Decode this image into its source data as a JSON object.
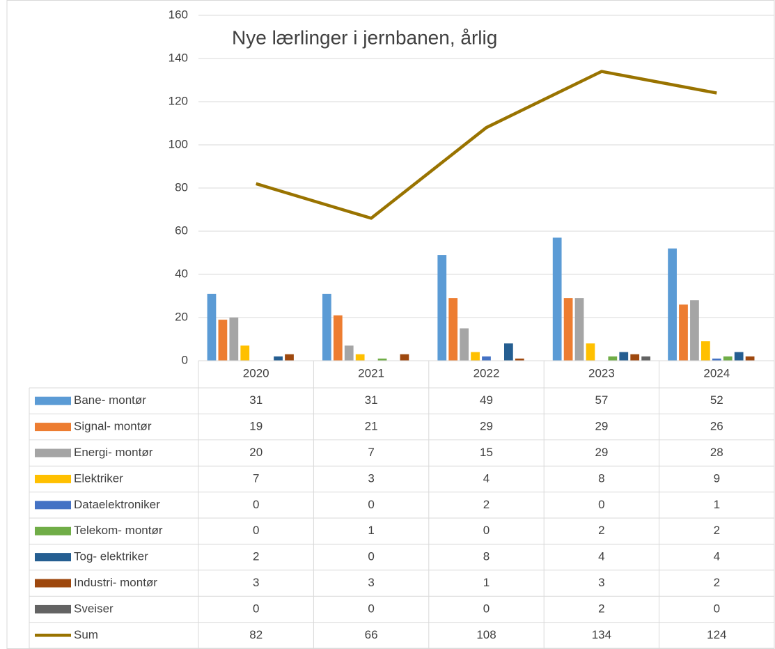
{
  "chart_data": {
    "type": "bar",
    "title": "Nye lærlinger i jernbanen, årlig",
    "categories": [
      "2020",
      "2021",
      "2022",
      "2023",
      "2024"
    ],
    "series": [
      {
        "name": "Bane- montør",
        "color": "#5B9BD5",
        "values": [
          31,
          31,
          49,
          57,
          52
        ]
      },
      {
        "name": "Signal- montør",
        "color": "#ED7D31",
        "values": [
          19,
          21,
          29,
          29,
          26
        ]
      },
      {
        "name": "Energi- montør",
        "color": "#A5A5A5",
        "values": [
          20,
          7,
          15,
          29,
          28
        ]
      },
      {
        "name": "Elektriker",
        "color": "#FFC000",
        "values": [
          7,
          3,
          4,
          8,
          9
        ]
      },
      {
        "name": "Dataelektroniker",
        "color": "#4472C4",
        "values": [
          0,
          0,
          2,
          0,
          1
        ]
      },
      {
        "name": "Telekom- montør",
        "color": "#70AD47",
        "values": [
          0,
          1,
          0,
          2,
          2
        ]
      },
      {
        "name": "Tog- elektriker",
        "color": "#255E91",
        "values": [
          2,
          0,
          8,
          4,
          4
        ]
      },
      {
        "name": "Industri- montør",
        "color": "#9E480E",
        "values": [
          3,
          3,
          1,
          3,
          2
        ]
      },
      {
        "name": "Sveiser",
        "color": "#636363",
        "values": [
          0,
          0,
          0,
          2,
          0
        ]
      },
      {
        "name": "Sum",
        "color": "#997300",
        "type": "line",
        "values": [
          82,
          66,
          108,
          134,
          124
        ]
      }
    ],
    "ylim": [
      0,
      160
    ],
    "yticks": [
      0,
      20,
      40,
      60,
      80,
      100,
      120,
      140,
      160
    ],
    "grid": true
  }
}
